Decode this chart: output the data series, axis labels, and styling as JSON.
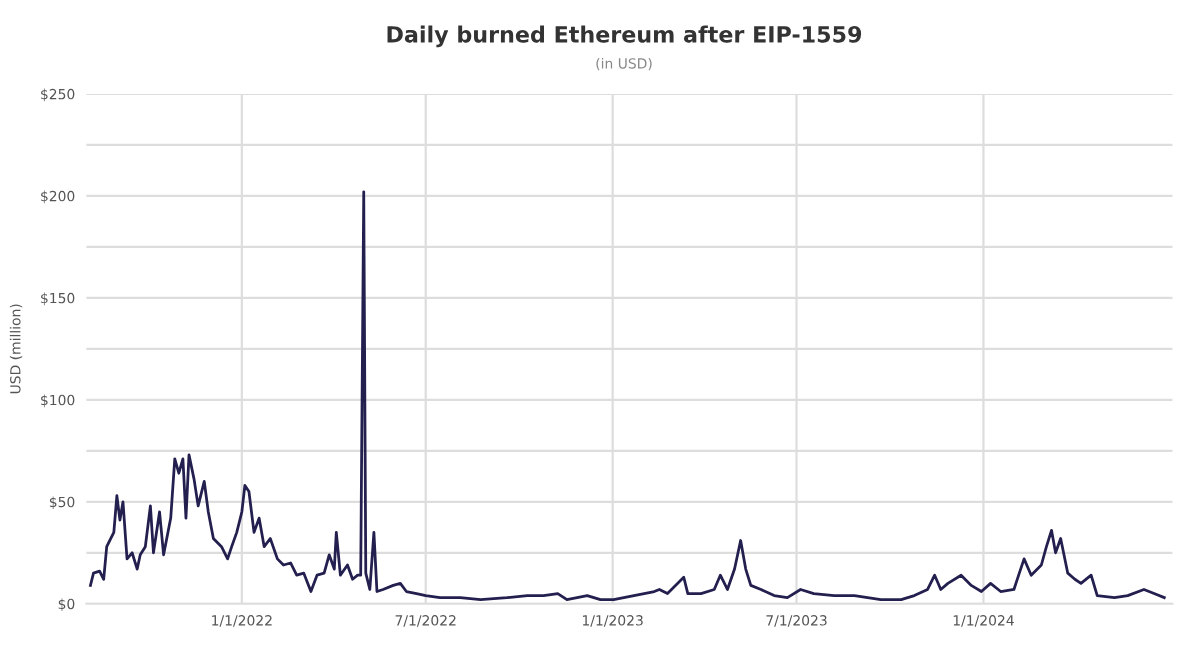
{
  "chart_data": {
    "type": "line",
    "title": "Daily burned Ethereum after EIP-1559",
    "subtitle": "(in USD)",
    "ylabel": "USD (million)",
    "x": [
      "2021-08-05",
      "2021-08-08",
      "2021-08-14",
      "2021-08-18",
      "2021-08-21",
      "2021-08-28",
      "2021-08-31",
      "2021-09-03",
      "2021-09-06",
      "2021-09-10",
      "2021-09-15",
      "2021-09-20",
      "2021-09-23",
      "2021-09-28",
      "2021-10-03",
      "2021-10-06",
      "2021-10-12",
      "2021-10-16",
      "2021-10-23",
      "2021-10-27",
      "2021-10-31",
      "2021-11-04",
      "2021-11-07",
      "2021-11-10",
      "2021-11-15",
      "2021-11-19",
      "2021-11-25",
      "2021-11-29",
      "2021-12-04",
      "2021-12-12",
      "2021-12-18",
      "2021-12-22",
      "2021-12-27",
      "2022-01-01",
      "2022-01-04",
      "2022-01-08",
      "2022-01-13",
      "2022-01-18",
      "2022-01-23",
      "2022-01-29",
      "2022-02-05",
      "2022-02-11",
      "2022-02-18",
      "2022-02-24",
      "2022-03-03",
      "2022-03-10",
      "2022-03-16",
      "2022-03-23",
      "2022-03-28",
      "2022-04-02",
      "2022-04-04",
      "2022-04-08",
      "2022-04-15",
      "2022-04-20",
      "2022-04-25",
      "2022-04-28",
      "2022-05-01",
      "2022-05-03",
      "2022-05-07",
      "2022-05-11",
      "2022-05-14",
      "2022-05-20",
      "2022-05-30",
      "2022-06-06",
      "2022-06-12",
      "2022-06-22",
      "2022-07-01",
      "2022-07-15",
      "2022-08-04",
      "2022-08-24",
      "2022-09-19",
      "2022-10-09",
      "2022-10-25",
      "2022-11-08",
      "2022-11-17",
      "2022-12-07",
      "2022-12-20",
      "2023-01-02",
      "2023-01-22",
      "2023-02-11",
      "2023-02-16",
      "2023-02-24",
      "2023-03-12",
      "2023-03-16",
      "2023-03-29",
      "2023-04-11",
      "2023-04-17",
      "2023-04-24",
      "2023-05-01",
      "2023-05-07",
      "2023-05-12",
      "2023-05-17",
      "2023-05-27",
      "2023-06-09",
      "2023-06-22",
      "2023-07-05",
      "2023-07-18",
      "2023-08-07",
      "2023-08-27",
      "2023-09-22",
      "2023-10-12",
      "2023-10-25",
      "2023-11-07",
      "2023-11-14",
      "2023-11-20",
      "2023-11-27",
      "2023-12-10",
      "2023-12-20",
      "2023-12-30",
      "2024-01-08",
      "2024-01-18",
      "2024-01-31",
      "2024-02-10",
      "2024-02-17",
      "2024-02-27",
      "2024-03-03",
      "2024-03-08",
      "2024-03-12",
      "2024-03-17",
      "2024-03-24",
      "2024-03-31",
      "2024-04-06",
      "2024-04-16",
      "2024-04-22",
      "2024-05-09",
      "2024-05-22",
      "2024-06-07",
      "2024-06-17",
      "2024-06-27"
    ],
    "series": [
      {
        "color": "#23204f",
        "values": [
          9,
          15,
          16,
          12,
          28,
          35,
          53,
          41,
          50,
          22,
          25,
          17,
          24,
          28,
          48,
          25,
          45,
          24,
          42,
          71,
          64,
          71,
          42,
          73,
          61,
          48,
          60,
          45,
          32,
          28,
          22,
          28,
          35,
          45,
          58,
          55,
          35,
          42,
          28,
          32,
          22,
          19,
          20,
          14,
          15,
          6,
          14,
          15,
          24,
          17,
          35,
          14,
          19,
          12,
          14,
          14,
          202,
          15,
          7,
          35,
          6,
          7,
          9,
          10,
          6,
          5,
          4,
          3,
          3,
          2,
          3,
          4,
          4,
          5,
          2,
          4,
          2,
          2,
          4,
          6,
          7,
          5,
          13,
          5,
          5,
          7,
          14,
          7,
          17,
          31,
          17,
          9,
          7,
          4,
          3,
          7,
          5,
          4,
          4,
          2,
          2,
          4,
          7,
          14,
          7,
          10,
          14,
          9,
          6,
          10,
          6,
          7,
          22,
          14,
          19,
          28,
          36,
          25,
          32,
          15,
          12,
          10,
          14,
          4,
          3,
          4,
          7,
          5,
          3
        ]
      }
    ],
    "xlim": [
      "2021-08-01",
      "2024-07-05"
    ],
    "xticks": [
      {
        "value": "2022-01-01",
        "label": "1/1/2022"
      },
      {
        "value": "2022-07-01",
        "label": "7/1/2022"
      },
      {
        "value": "2023-01-01",
        "label": "1/1/2023"
      },
      {
        "value": "2023-07-01",
        "label": "7/1/2023"
      },
      {
        "value": "2024-01-01",
        "label": "1/1/2024"
      }
    ],
    "ylim": [
      0,
      250
    ],
    "yticks": [
      {
        "value": 0,
        "label": "$0"
      },
      {
        "value": 25,
        "label": null
      },
      {
        "value": 50,
        "label": "$50"
      },
      {
        "value": 75,
        "label": null
      },
      {
        "value": 100,
        "label": "$100"
      },
      {
        "value": 125,
        "label": null
      },
      {
        "value": 150,
        "label": "$150"
      },
      {
        "value": 175,
        "label": null
      },
      {
        "value": 200,
        "label": "$200"
      },
      {
        "value": 225,
        "label": null
      },
      {
        "value": 250,
        "label": "$250"
      }
    ],
    "grid": true,
    "line_style": "solid",
    "marker": "none"
  }
}
